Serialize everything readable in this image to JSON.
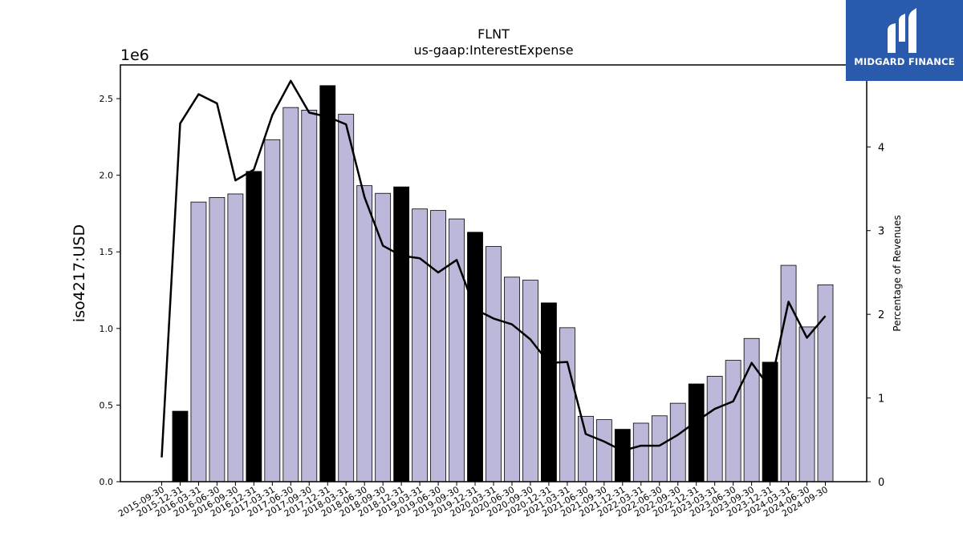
{
  "brand": {
    "name": "MIDGARD FINANCE",
    "bg_color": "#2a5aac"
  },
  "chart_data": {
    "type": "bar",
    "title": "FLNT",
    "subtitle": "us-gaap:InterestExpense",
    "ylabel": "iso4217:USD",
    "y2label": "Percentage of Revenues",
    "y_offset_label": "1e6",
    "ylim": [
      0,
      2720000
    ],
    "y_ticks": [
      0,
      500000,
      1000000,
      1500000,
      2000000,
      2500000
    ],
    "y_tick_labels": [
      "0.0",
      "0.5",
      "1.0",
      "1.5",
      "2.0",
      "2.5"
    ],
    "y2lim": [
      0,
      4.98
    ],
    "y2_ticks": [
      0,
      1,
      2,
      3,
      4
    ],
    "y2_tick_labels": [
      "0",
      "1",
      "2",
      "3",
      "4"
    ],
    "colors": {
      "quarter_bar": "#bcb8d9",
      "annual_bar": "#000000",
      "line": "#000000"
    },
    "categories": [
      "2015-09-30",
      "2015-12-31",
      "2016-03-31",
      "2016-06-30",
      "2016-09-30",
      "2016-12-31",
      "2017-03-31",
      "2017-06-30",
      "2017-09-30",
      "2017-12-31",
      "2018-03-31",
      "2018-06-30",
      "2018-09-30",
      "2018-12-31",
      "2019-03-31",
      "2019-06-30",
      "2019-09-30",
      "2019-12-31",
      "2020-03-31",
      "2020-06-30",
      "2020-09-30",
      "2020-12-31",
      "2021-03-31",
      "2021-06-30",
      "2021-09-30",
      "2021-12-31",
      "2022-03-31",
      "2022-06-30",
      "2022-09-30",
      "2022-12-31",
      "2023-03-31",
      "2023-06-30",
      "2023-09-30",
      "2023-12-31",
      "2024-03-31",
      "2024-06-30",
      "2024-09-30"
    ],
    "series": [
      {
        "kind": "bar",
        "values": [
          null,
          460000,
          1825000,
          1855000,
          1878000,
          2025000,
          2232000,
          2442000,
          2425000,
          2585000,
          2398000,
          1932000,
          1882000,
          1924000,
          1780000,
          1770000,
          1715000,
          1628000,
          1535000,
          1335000,
          1315000,
          1167000,
          1005000,
          427000,
          405000,
          342000,
          382000,
          430000,
          512000,
          638000,
          688000,
          792000,
          935000,
          780000,
          1412000,
          1010000,
          1285000
        ],
        "annual": [
          false,
          true,
          false,
          false,
          false,
          true,
          false,
          false,
          false,
          true,
          false,
          false,
          false,
          true,
          false,
          false,
          false,
          true,
          false,
          false,
          false,
          true,
          false,
          false,
          false,
          true,
          false,
          false,
          false,
          true,
          false,
          false,
          false,
          true,
          false,
          false,
          false
        ]
      },
      {
        "kind": "line",
        "axis": "right",
        "values": [
          0.29,
          4.28,
          4.63,
          4.52,
          3.6,
          3.73,
          4.38,
          4.79,
          4.41,
          4.36,
          4.27,
          3.4,
          2.82,
          2.7,
          2.67,
          2.5,
          2.65,
          2.06,
          1.95,
          1.88,
          1.7,
          1.42,
          1.43,
          0.57,
          0.48,
          0.37,
          0.43,
          0.43,
          0.56,
          0.72,
          0.87,
          0.96,
          1.42,
          1.12,
          2.15,
          1.72,
          1.98
        ]
      }
    ]
  }
}
